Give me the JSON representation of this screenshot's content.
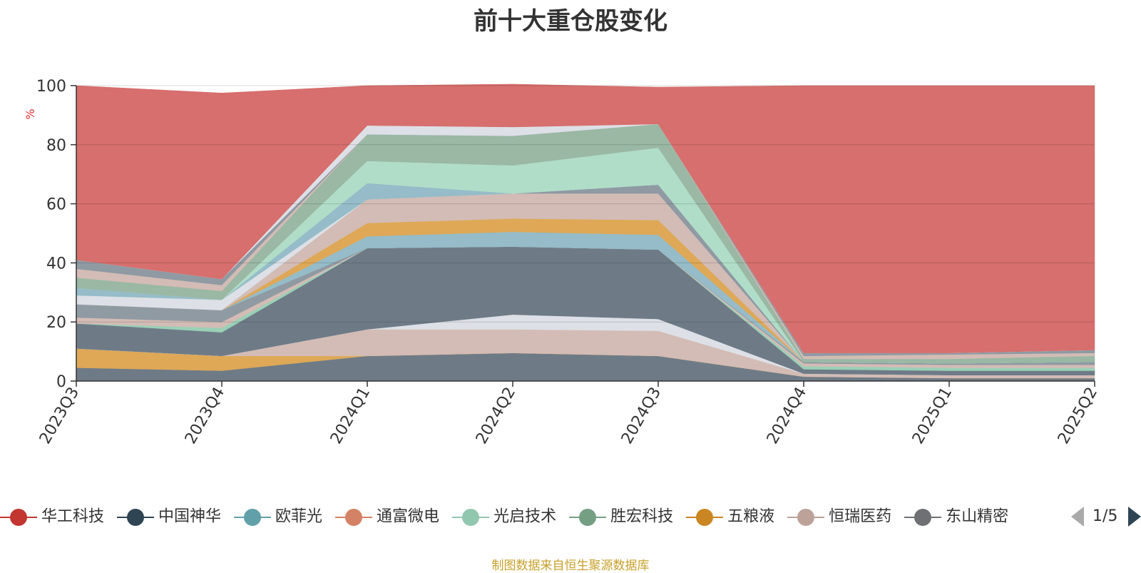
{
  "chart_data": {
    "type": "area",
    "title": "前十大重仓股变化",
    "ylabel": "%",
    "ylim": [
      0,
      100
    ],
    "yticks": [
      0,
      20,
      40,
      60,
      80,
      100
    ],
    "categories": [
      "2023Q3",
      "2023Q4",
      "2024Q1",
      "2024Q2",
      "2024Q3",
      "2024Q4",
      "2025Q1",
      "2025Q2"
    ],
    "grid": true,
    "legend_position": "bottom",
    "series": [
      {
        "name": "中国神华",
        "color": "#6e7b87",
        "values": [
          4.5,
          3.5,
          8.5,
          9.5,
          8.5,
          1.5,
          1.0,
          1.0
        ]
      },
      {
        "name": "五粮液",
        "color": "#dea857",
        "values": [
          6.5,
          5.0,
          0,
          0,
          0,
          0,
          0,
          0
        ]
      },
      {
        "name": "恒瑞医药",
        "color": "#d3bcb5",
        "values": [
          0,
          0,
          9.0,
          8.0,
          8.5,
          1.0,
          1.0,
          1.0
        ]
      },
      {
        "name": "",
        "color": "#dde0e6",
        "values": [
          0,
          0,
          0,
          5.0,
          4.0,
          0,
          0,
          0
        ]
      },
      {
        "name": "",
        "color": "#6e7b87",
        "values": [
          8.5,
          8.0,
          27.5,
          23.0,
          23.5,
          1.5,
          1.5,
          1.5
        ]
      },
      {
        "name": "",
        "color": "#9ad0b6",
        "values": [
          0,
          1.5,
          0,
          0,
          0,
          1.0,
          1.0,
          1.0
        ]
      },
      {
        "name": "",
        "color": "#d3bcb5",
        "values": [
          2.0,
          2.0,
          0,
          0,
          0,
          1.0,
          1.0,
          1.0
        ]
      },
      {
        "name": "",
        "color": "#8f9aa3",
        "values": [
          4.5,
          4.0,
          0,
          0,
          0,
          0.5,
          0.5,
          1.0
        ]
      },
      {
        "name": "",
        "color": "#95bcc8",
        "values": [
          0,
          0,
          4.0,
          5.0,
          5.0,
          0,
          0,
          0
        ]
      },
      {
        "name": "",
        "color": "#dea857",
        "values": [
          0,
          0,
          4.5,
          4.5,
          5.0,
          0,
          0,
          0
        ]
      },
      {
        "name": "",
        "color": "#d3bcb5",
        "values": [
          0,
          0,
          8.0,
          8.5,
          9.0,
          0,
          0,
          0
        ]
      },
      {
        "name": "",
        "color": "#8f9aa3",
        "values": [
          0,
          0,
          0,
          0,
          3.0,
          0,
          0,
          0
        ]
      },
      {
        "name": "",
        "color": "#dde0e6",
        "values": [
          3.0,
          3.5,
          0,
          0,
          0,
          0,
          0,
          0
        ]
      },
      {
        "name": "",
        "color": "#95bcc8",
        "values": [
          2.5,
          0,
          5.5,
          0,
          0,
          0,
          0,
          0
        ]
      },
      {
        "name": "",
        "color": "#b0ddc8",
        "values": [
          0,
          0,
          7.5,
          9.5,
          12.5,
          0,
          0,
          0
        ]
      },
      {
        "name": "",
        "color": "#9ab8a4",
        "values": [
          3.5,
          3.0,
          9.0,
          10.0,
          8.0,
          1.0,
          1.5,
          2.0
        ]
      },
      {
        "name": "",
        "color": "#d3bcb5",
        "values": [
          3.0,
          2.0,
          0,
          0,
          0,
          1.0,
          1.5,
          1.0
        ]
      },
      {
        "name": "",
        "color": "#8f9aa3",
        "values": [
          3.0,
          2.0,
          0,
          0,
          0,
          1.0,
          0.5,
          1.0
        ]
      },
      {
        "name": "",
        "color": "#dde0e6",
        "values": [
          0,
          0,
          3.0,
          3.0,
          0,
          0,
          0,
          0
        ]
      },
      {
        "name": "华工科技",
        "color": "#d66f6d",
        "values": [
          59.0,
          63.0,
          13.5,
          14.5,
          12.5,
          90.5,
          90.5,
          89.5
        ]
      }
    ]
  },
  "legend": {
    "items": [
      {
        "label": "华工科技",
        "color": "#c23531"
      },
      {
        "label": "中国神华",
        "color": "#2f4554"
      },
      {
        "label": "欧菲光",
        "color": "#61a0a8"
      },
      {
        "label": "通富微电",
        "color": "#d48265"
      },
      {
        "label": "光启技术",
        "color": "#91c7ae"
      },
      {
        "label": "胜宏科技",
        "color": "#749f83"
      },
      {
        "label": "五粮液",
        "color": "#ca8622"
      },
      {
        "label": "恒瑞医药",
        "color": "#bda29a"
      },
      {
        "label": "东山精密",
        "color": "#6e7074"
      }
    ],
    "page": "1/5"
  },
  "source_text": "制图数据来自恒生聚源数据库"
}
